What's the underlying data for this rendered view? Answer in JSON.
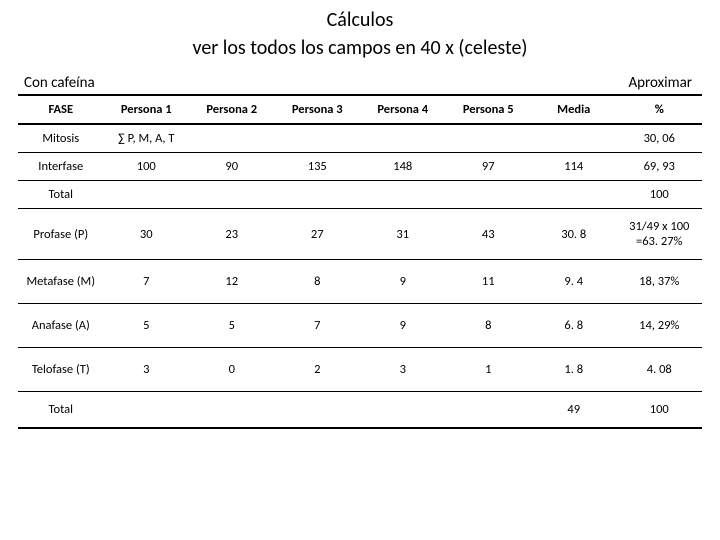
{
  "title_line1": "Cálculos",
  "title_line2": "ver los todos los campos en 40 x (celeste)",
  "left_label": "Con cafeína",
  "right_label": "Aproximar",
  "columns": [
    "FASE",
    "Persona 1",
    "Persona 2",
    "Persona 3",
    "Persona 4",
    "Persona 5",
    "Media",
    "%"
  ],
  "rows": {
    "mitosis": {
      "fase": "Mitosis",
      "p1": "∑ P, M, A, T",
      "p2": "",
      "p3": "",
      "p4": "",
      "p5": "",
      "media": "",
      "pct": "30, 06"
    },
    "interfase": {
      "fase": "Interfase",
      "p1": "100",
      "p2": "90",
      "p3": "135",
      "p4": "148",
      "p5": "97",
      "media": "114",
      "pct": "69, 93"
    },
    "total1": {
      "fase": "Total",
      "p1": "",
      "p2": "",
      "p3": "",
      "p4": "",
      "p5": "",
      "media": "",
      "pct": "100"
    },
    "profase": {
      "fase": "Profase (P)",
      "p1": "30",
      "p2": "23",
      "p3": "27",
      "p4": "31",
      "p5": "43",
      "media": "30. 8",
      "pct": "31/49 x 100 =63. 27%"
    },
    "metafase": {
      "fase": "Metafase (M)",
      "p1": "7",
      "p2": "12",
      "p3": "8",
      "p4": "9",
      "p5": "11",
      "media": "9. 4",
      "pct": "18, 37%"
    },
    "anafase": {
      "fase": "Anafase (A)",
      "p1": "5",
      "p2": "5",
      "p3": "7",
      "p4": "9",
      "p5": "8",
      "media": "6. 8",
      "pct": "14, 29%"
    },
    "telofase": {
      "fase": "Telofase (T)",
      "p1": "3",
      "p2": "0",
      "p3": "2",
      "p4": "3",
      "p5": "1",
      "media": "1. 8",
      "pct": "4. 08"
    },
    "total2": {
      "fase": "Total",
      "p1": "",
      "p2": "",
      "p3": "",
      "p4": "",
      "p5": "",
      "media": "49",
      "pct": "100"
    }
  },
  "colors": {
    "text": "#000000",
    "background": "#ffffff",
    "border": "#000000"
  },
  "fontsizes": {
    "title": 20,
    "meta": 15,
    "cell": 12.5
  }
}
